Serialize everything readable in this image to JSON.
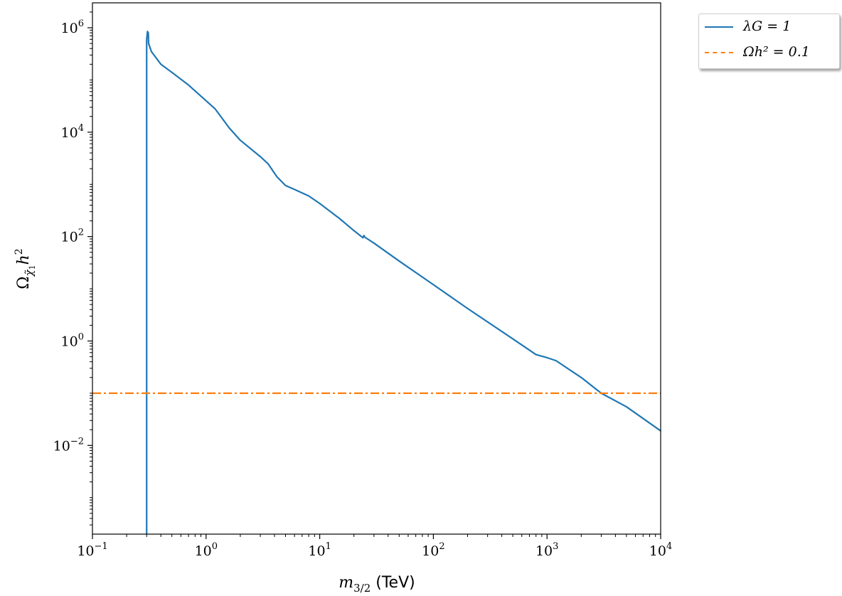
{
  "chart_data": {
    "type": "line",
    "x_scale": "log",
    "y_scale": "log",
    "xlim": [
      0.1,
      10000
    ],
    "ylim": [
      0.0002,
      3000000
    ],
    "xlabel": "m3/2 (TeV)",
    "ylabel": "Ωχ̃1 h²",
    "x_ticks": [
      {
        "value": 0.1,
        "base": "10",
        "exp": "−1"
      },
      {
        "value": 1,
        "base": "10",
        "exp": "0"
      },
      {
        "value": 10,
        "base": "10",
        "exp": "1"
      },
      {
        "value": 100,
        "base": "10",
        "exp": "2"
      },
      {
        "value": 1000,
        "base": "10",
        "exp": "3"
      },
      {
        "value": 10000,
        "base": "10",
        "exp": "4"
      }
    ],
    "y_ticks": [
      {
        "value": 0.01,
        "base": "10",
        "exp": "−2"
      },
      {
        "value": 1,
        "base": "10",
        "exp": "0"
      },
      {
        "value": 100,
        "base": "10",
        "exp": "2"
      },
      {
        "value": 10000,
        "base": "10",
        "exp": "4"
      },
      {
        "value": 1000000,
        "base": "10",
        "exp": "6"
      }
    ],
    "grid": false,
    "legend_position": "outside-top-right",
    "series": [
      {
        "name": "λG = 1",
        "color": "#1f77b4",
        "style": "solid",
        "points": [
          [
            0.3,
            0.0002
          ],
          [
            0.3,
            600000
          ],
          [
            0.305,
            850000
          ],
          [
            0.31,
            800000
          ],
          [
            0.312,
            500000
          ],
          [
            0.33,
            350000
          ],
          [
            0.4,
            200000
          ],
          [
            0.5,
            140000
          ],
          [
            0.7,
            80000
          ],
          [
            1.0,
            40000
          ],
          [
            1.2,
            28000
          ],
          [
            1.6,
            12000
          ],
          [
            2.0,
            7000
          ],
          [
            3.0,
            3400
          ],
          [
            3.5,
            2500
          ],
          [
            4.2,
            1400
          ],
          [
            5.0,
            950
          ],
          [
            6.0,
            800
          ],
          [
            8.0,
            600
          ],
          [
            10.0,
            430
          ],
          [
            15.0,
            220
          ],
          [
            20.0,
            130
          ],
          [
            24.0,
            95
          ],
          [
            24.5,
            105
          ],
          [
            25.0,
            97
          ],
          [
            30.0,
            75
          ],
          [
            50.0,
            34
          ],
          [
            100.0,
            12
          ],
          [
            200.0,
            4.2
          ],
          [
            500.0,
            1.1
          ],
          [
            800.0,
            0.55
          ],
          [
            1000.0,
            0.48
          ],
          [
            1200.0,
            0.42
          ],
          [
            2000.0,
            0.2
          ],
          [
            3000.0,
            0.1
          ],
          [
            5000.0,
            0.055
          ],
          [
            10000.0,
            0.019
          ]
        ]
      },
      {
        "name": "Ωh² = 0.1",
        "color": "#ff7f0e",
        "style": "dashdot",
        "constant": 0.1
      }
    ]
  },
  "legend": {
    "entries": [
      {
        "label": "λG = 1"
      },
      {
        "label": "Ωh² = 0.1"
      }
    ]
  }
}
